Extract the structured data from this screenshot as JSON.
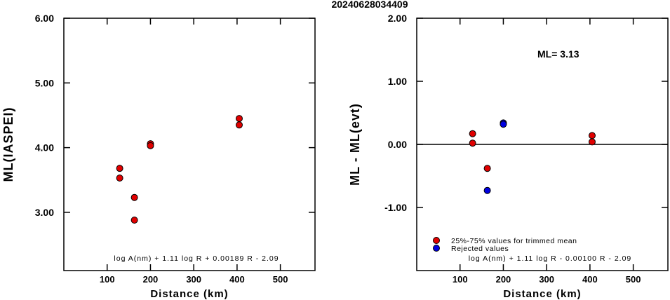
{
  "figure_title": "20240628034409",
  "chart_data": [
    {
      "type": "scatter",
      "title": "",
      "xlabel": "Distance (km)",
      "ylabel": "ML(IASPEI)",
      "xlim": [
        0,
        580
      ],
      "ylim": [
        2.1,
        6.0
      ],
      "x_ticks": [
        100,
        200,
        300,
        400,
        500
      ],
      "x_tick_labels": [
        "100",
        "200",
        "300",
        "400",
        "500"
      ],
      "y_ticks": [
        3.0,
        4.0,
        5.0,
        6.0
      ],
      "y_tick_labels": [
        "3.00",
        "4.00",
        "5.00",
        "6.00"
      ],
      "grid": false,
      "series": [
        {
          "color": "#e00000",
          "points": [
            {
              "x": 129,
              "y": 3.68
            },
            {
              "x": 129,
              "y": 3.53
            },
            {
              "x": 163,
              "y": 3.23
            },
            {
              "x": 163,
              "y": 2.88
            },
            {
              "x": 200,
              "y": 4.06
            },
            {
              "x": 200,
              "y": 4.03
            },
            {
              "x": 405,
              "y": 4.45
            },
            {
              "x": 405,
              "y": 4.35
            }
          ]
        }
      ],
      "annotation": "log A(nm) + 1.11 log R + 0.00189 R - 2.09"
    },
    {
      "type": "scatter",
      "title": "",
      "xlabel": "Distance (km)",
      "ylabel": "ML - ML(evt)",
      "xlim": [
        0,
        580
      ],
      "ylim": [
        -2.0,
        2.0
      ],
      "x_ticks": [
        100,
        200,
        300,
        400,
        500
      ],
      "x_tick_labels": [
        "100",
        "200",
        "300",
        "400",
        "500"
      ],
      "y_ticks": [
        -1.0,
        0.0,
        1.0,
        2.0
      ],
      "y_tick_labels": [
        "-1.00",
        "0.00",
        "1.00",
        "2.00"
      ],
      "grid": false,
      "zero_line": true,
      "ml_label": "ML= 3.13",
      "series": [
        {
          "name": "25%-75% values for trimmed mean",
          "color": "#e00000",
          "points": [
            {
              "x": 129,
              "y": 0.17
            },
            {
              "x": 129,
              "y": 0.02
            },
            {
              "x": 163,
              "y": -0.38
            },
            {
              "x": 405,
              "y": 0.14
            },
            {
              "x": 405,
              "y": 0.04
            }
          ]
        },
        {
          "name": "Rejected values",
          "color": "#0000e0",
          "points": [
            {
              "x": 163,
              "y": -0.73
            },
            {
              "x": 200,
              "y": 0.34
            },
            {
              "x": 200,
              "y": 0.32
            }
          ]
        }
      ],
      "legend_placement": "bottom-left",
      "annotation": "log A(nm) + 1.11 log R - 0.00100 R - 2.09"
    }
  ]
}
